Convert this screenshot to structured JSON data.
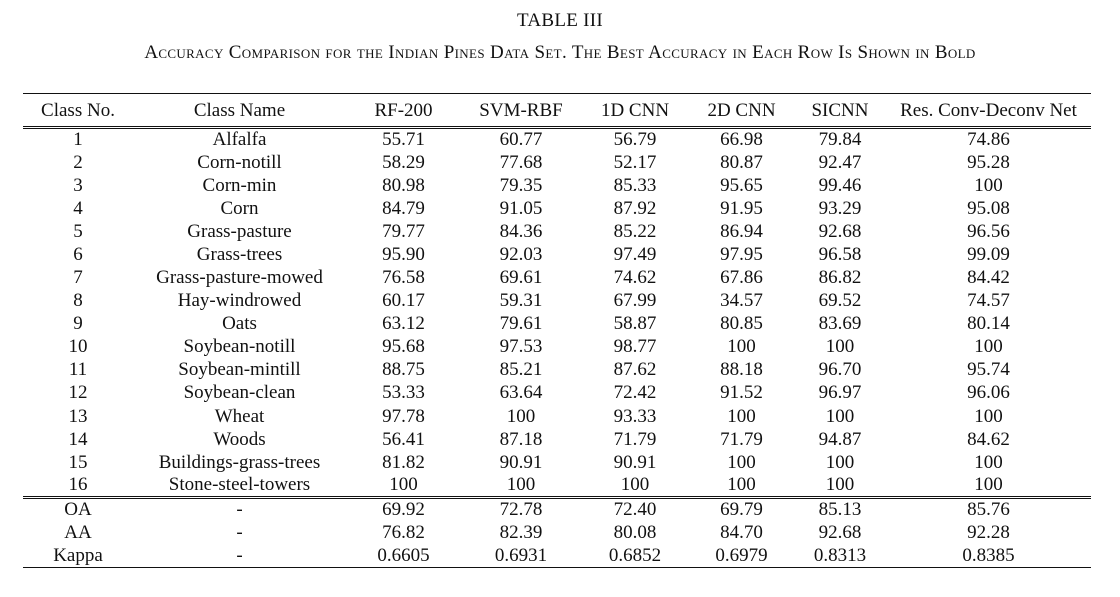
{
  "table_label": "TABLE III",
  "caption": "Accuracy Comparison for the Indian Pines Data Set. The Best Accuracy in Each Row Is Shown in Bold",
  "columns": [
    "Class No.",
    "Class Name",
    "RF-200",
    "SVM-RBF",
    "1D CNN",
    "2D CNN",
    "SICNN",
    "Res. Conv-Deconv Net"
  ],
  "rows": [
    {
      "no": "1",
      "name": "Alfalfa",
      "values": [
        "55.71",
        "60.77",
        "56.79",
        "66.98",
        "79.84",
        "74.86"
      ],
      "best": [
        4
      ]
    },
    {
      "no": "2",
      "name": "Corn-notill",
      "values": [
        "58.29",
        "77.68",
        "52.17",
        "80.87",
        "92.47",
        "95.28"
      ],
      "best": [
        5
      ]
    },
    {
      "no": "3",
      "name": "Corn-min",
      "values": [
        "80.98",
        "79.35",
        "85.33",
        "95.65",
        "99.46",
        "100"
      ],
      "best": [
        5
      ]
    },
    {
      "no": "4",
      "name": "Corn",
      "values": [
        "84.79",
        "91.05",
        "87.92",
        "91.95",
        "93.29",
        "95.08"
      ],
      "best": [
        5
      ]
    },
    {
      "no": "5",
      "name": "Grass-pasture",
      "values": [
        "79.77",
        "84.36",
        "85.22",
        "86.94",
        "92.68",
        "96.56"
      ],
      "best": [
        5
      ]
    },
    {
      "no": "6",
      "name": "Grass-trees",
      "values": [
        "95.90",
        "92.03",
        "97.49",
        "97.95",
        "96.58",
        "99.09"
      ],
      "best": [
        5
      ]
    },
    {
      "no": "7",
      "name": "Grass-pasture-mowed",
      "values": [
        "76.58",
        "69.61",
        "74.62",
        "67.86",
        "86.82",
        "84.42"
      ],
      "best": [
        4
      ]
    },
    {
      "no": "8",
      "name": "Hay-windrowed",
      "values": [
        "60.17",
        "59.31",
        "67.99",
        "34.57",
        "69.52",
        "74.57"
      ],
      "best": [
        5
      ]
    },
    {
      "no": "9",
      "name": "Oats",
      "values": [
        "63.12",
        "79.61",
        "58.87",
        "80.85",
        "83.69",
        "80.14"
      ],
      "best": [
        4
      ]
    },
    {
      "no": "10",
      "name": "Soybean-notill",
      "values": [
        "95.68",
        "97.53",
        "98.77",
        "100",
        "100",
        "100"
      ],
      "best": [
        3,
        4,
        5
      ]
    },
    {
      "no": "11",
      "name": "Soybean-mintill",
      "values": [
        "88.75",
        "85.21",
        "87.62",
        "88.18",
        "96.70",
        "95.74"
      ],
      "best": [
        4
      ]
    },
    {
      "no": "12",
      "name": "Soybean-clean",
      "values": [
        "53.33",
        "63.64",
        "72.42",
        "91.52",
        "96.97",
        "96.06"
      ],
      "best": [
        4
      ]
    },
    {
      "no": "13",
      "name": "Wheat",
      "values": [
        "97.78",
        "100",
        "93.33",
        "100",
        "100",
        "100"
      ],
      "best": [
        1,
        3,
        4,
        5
      ]
    },
    {
      "no": "14",
      "name": "Woods",
      "values": [
        "56.41",
        "87.18",
        "71.79",
        "71.79",
        "94.87",
        "84.62"
      ],
      "best": [
        4
      ]
    },
    {
      "no": "15",
      "name": "Buildings-grass-trees",
      "values": [
        "81.82",
        "90.91",
        "90.91",
        "100",
        "100",
        "100"
      ],
      "best": [
        3,
        4,
        5
      ]
    },
    {
      "no": "16",
      "name": "Stone-steel-towers",
      "values": [
        "100",
        "100",
        "100",
        "100",
        "100",
        "100"
      ],
      "best": [
        0,
        1,
        2,
        3,
        4,
        5
      ]
    }
  ],
  "summary": [
    {
      "no": "OA",
      "name": "-",
      "values": [
        "69.92",
        "72.78",
        "72.40",
        "69.79",
        "85.13",
        "85.76"
      ],
      "best": [
        5
      ]
    },
    {
      "no": "AA",
      "name": "-",
      "values": [
        "76.82",
        "82.39",
        "80.08",
        "84.70",
        "92.68",
        "92.28"
      ],
      "best": [
        4
      ]
    },
    {
      "no": "Kappa",
      "name": "-",
      "values": [
        "0.6605",
        "0.6931",
        "0.6852",
        "0.6979",
        "0.8313",
        "0.8385"
      ],
      "best": [
        5
      ]
    }
  ]
}
